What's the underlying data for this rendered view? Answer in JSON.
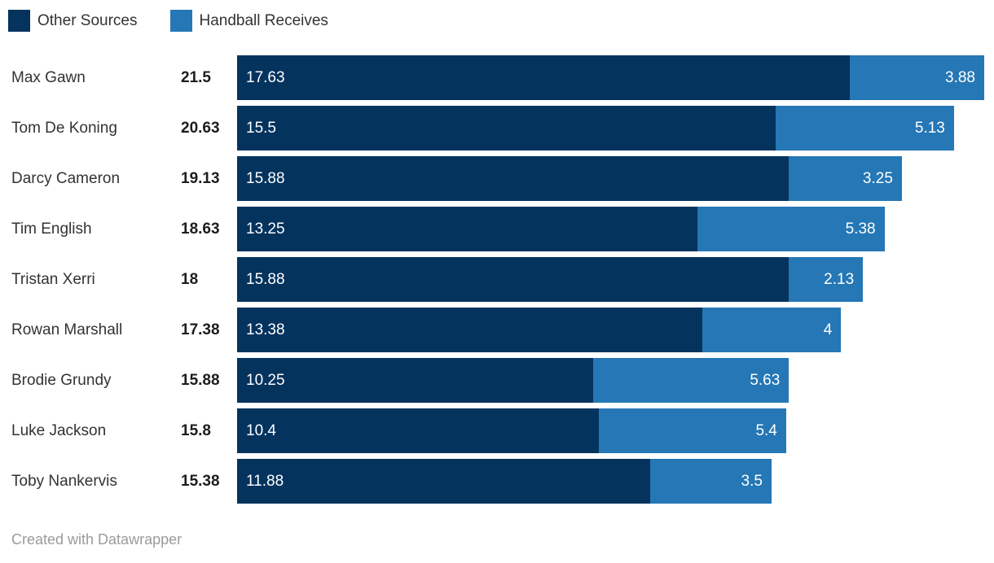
{
  "chart_data": {
    "type": "bar",
    "orientation": "horizontal",
    "stacked": true,
    "legend_position": "top",
    "value_labels": "inside",
    "grid": false,
    "categories": [
      "Max Gawn",
      "Tom De Koning",
      "Darcy Cameron",
      "Tim English",
      "Tristan Xerri",
      "Rowan Marshall",
      "Brodie Grundy",
      "Luke Jackson",
      "Toby Nankervis"
    ],
    "totals": [
      21.5,
      20.63,
      19.13,
      18.63,
      18,
      17.38,
      15.88,
      15.8,
      15.38
    ],
    "series": [
      {
        "name": "Other Sources",
        "color": "#04335e",
        "values": [
          17.63,
          15.5,
          15.88,
          13.25,
          15.88,
          13.38,
          10.25,
          10.4,
          11.88
        ]
      },
      {
        "name": "Handball Receives",
        "color": "#2577b5",
        "values": [
          3.88,
          5.13,
          3.25,
          5.38,
          2.13,
          4,
          5.63,
          5.4,
          3.5
        ]
      }
    ],
    "xmax": 21.5
  },
  "footer": {
    "credit": "Created with Datawrapper"
  },
  "colors": {
    "series_dark": "#04335e",
    "series_light": "#2577b5",
    "label_text": "#333333",
    "total_text": "#1d1d1d",
    "bar_value_text": "#ffffff",
    "credit_text": "#9b9b9b",
    "background": "#ffffff"
  }
}
